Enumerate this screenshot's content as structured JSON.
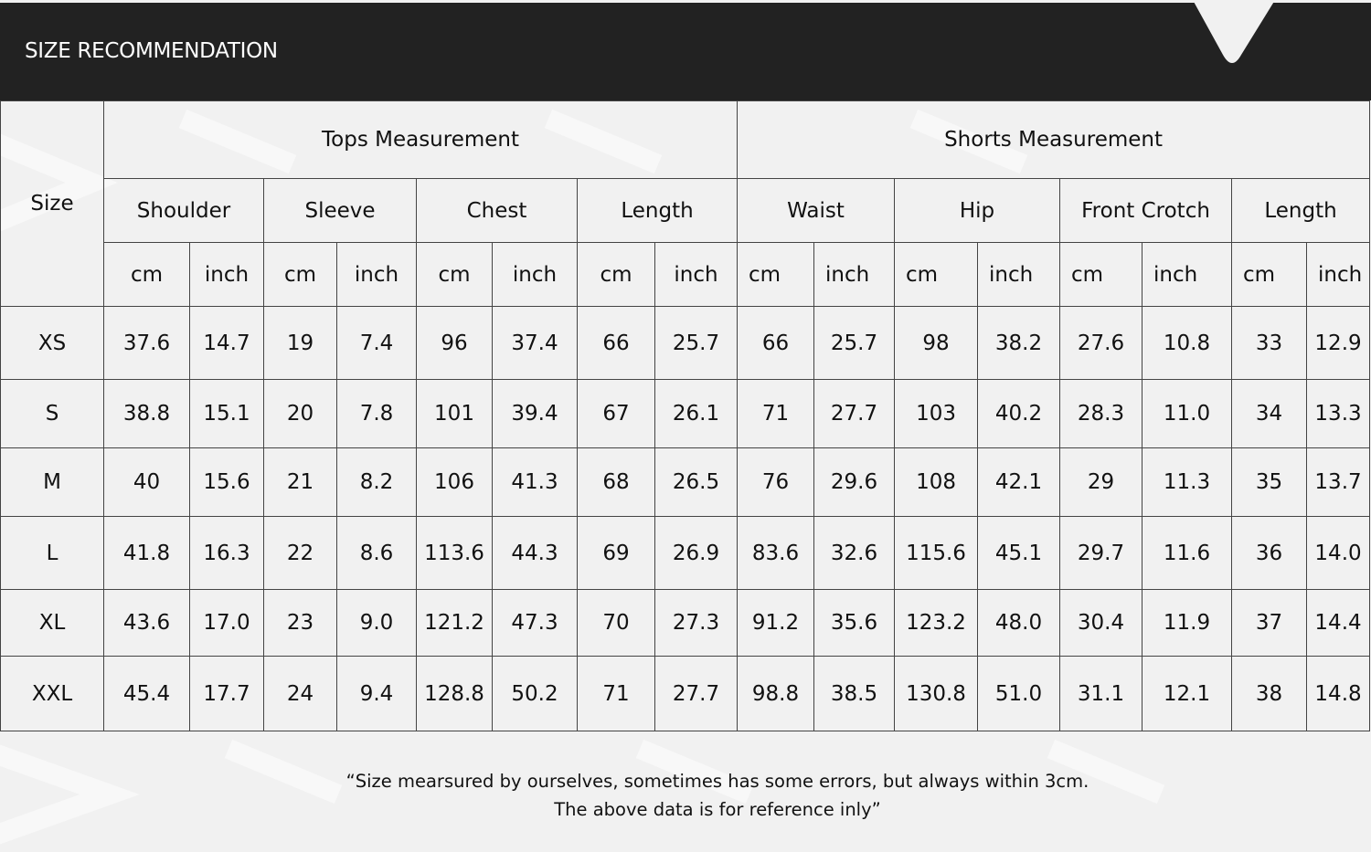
{
  "header": {
    "title": "SIZE RECOMMENDATION",
    "bg_color": "#222222"
  },
  "table": {
    "size_label": "Size",
    "groups": [
      {
        "label": "Tops Measurement",
        "measures": [
          "Shoulder",
          "Sleeve",
          "Chest",
          "Length"
        ]
      },
      {
        "label": "Shorts Measurement",
        "measures": [
          "Waist",
          "Hip",
          "Front Crotch",
          "Length"
        ]
      }
    ],
    "units": [
      "cm",
      "inch"
    ],
    "rows": [
      {
        "size": "XS",
        "values": [
          "37.6",
          "14.7",
          "19",
          "7.4",
          "96",
          "37.4",
          "66",
          "25.7",
          "66",
          "25.7",
          "98",
          "38.2",
          "27.6",
          "10.8",
          "33",
          "12.9"
        ]
      },
      {
        "size": "S",
        "values": [
          "38.8",
          "15.1",
          "20",
          "7.8",
          "101",
          "39.4",
          "67",
          "26.1",
          "71",
          "27.7",
          "103",
          "40.2",
          "28.3",
          "11.0",
          "34",
          "13.3"
        ]
      },
      {
        "size": "M",
        "values": [
          "40",
          "15.6",
          "21",
          "8.2",
          "106",
          "41.3",
          "68",
          "26.5",
          "76",
          "29.6",
          "108",
          "42.1",
          "29",
          "11.3",
          "35",
          "13.7"
        ]
      },
      {
        "size": "L",
        "values": [
          "41.8",
          "16.3",
          "22",
          "8.6",
          "113.6",
          "44.3",
          "69",
          "26.9",
          "83.6",
          "32.6",
          "115.6",
          "45.1",
          "29.7",
          "11.6",
          "36",
          "14.0"
        ]
      },
      {
        "size": "XL",
        "values": [
          "43.6",
          "17.0",
          "23",
          "9.0",
          "121.2",
          "47.3",
          "70",
          "27.3",
          "91.2",
          "35.6",
          "123.2",
          "48.0",
          "30.4",
          "11.9",
          "37",
          "14.4"
        ]
      },
      {
        "size": "XXL",
        "values": [
          "45.4",
          "17.7",
          "24",
          "9.4",
          "128.8",
          "50.2",
          "71",
          "27.7",
          "98.8",
          "38.5",
          "130.8",
          "51.0",
          "31.1",
          "12.1",
          "38",
          "14.8"
        ]
      }
    ]
  },
  "footer": {
    "line1": "“Size mearsured by ourselves, sometimes has some errors, but always within 3cm.",
    "line2": "The above data is for reference inly”"
  }
}
